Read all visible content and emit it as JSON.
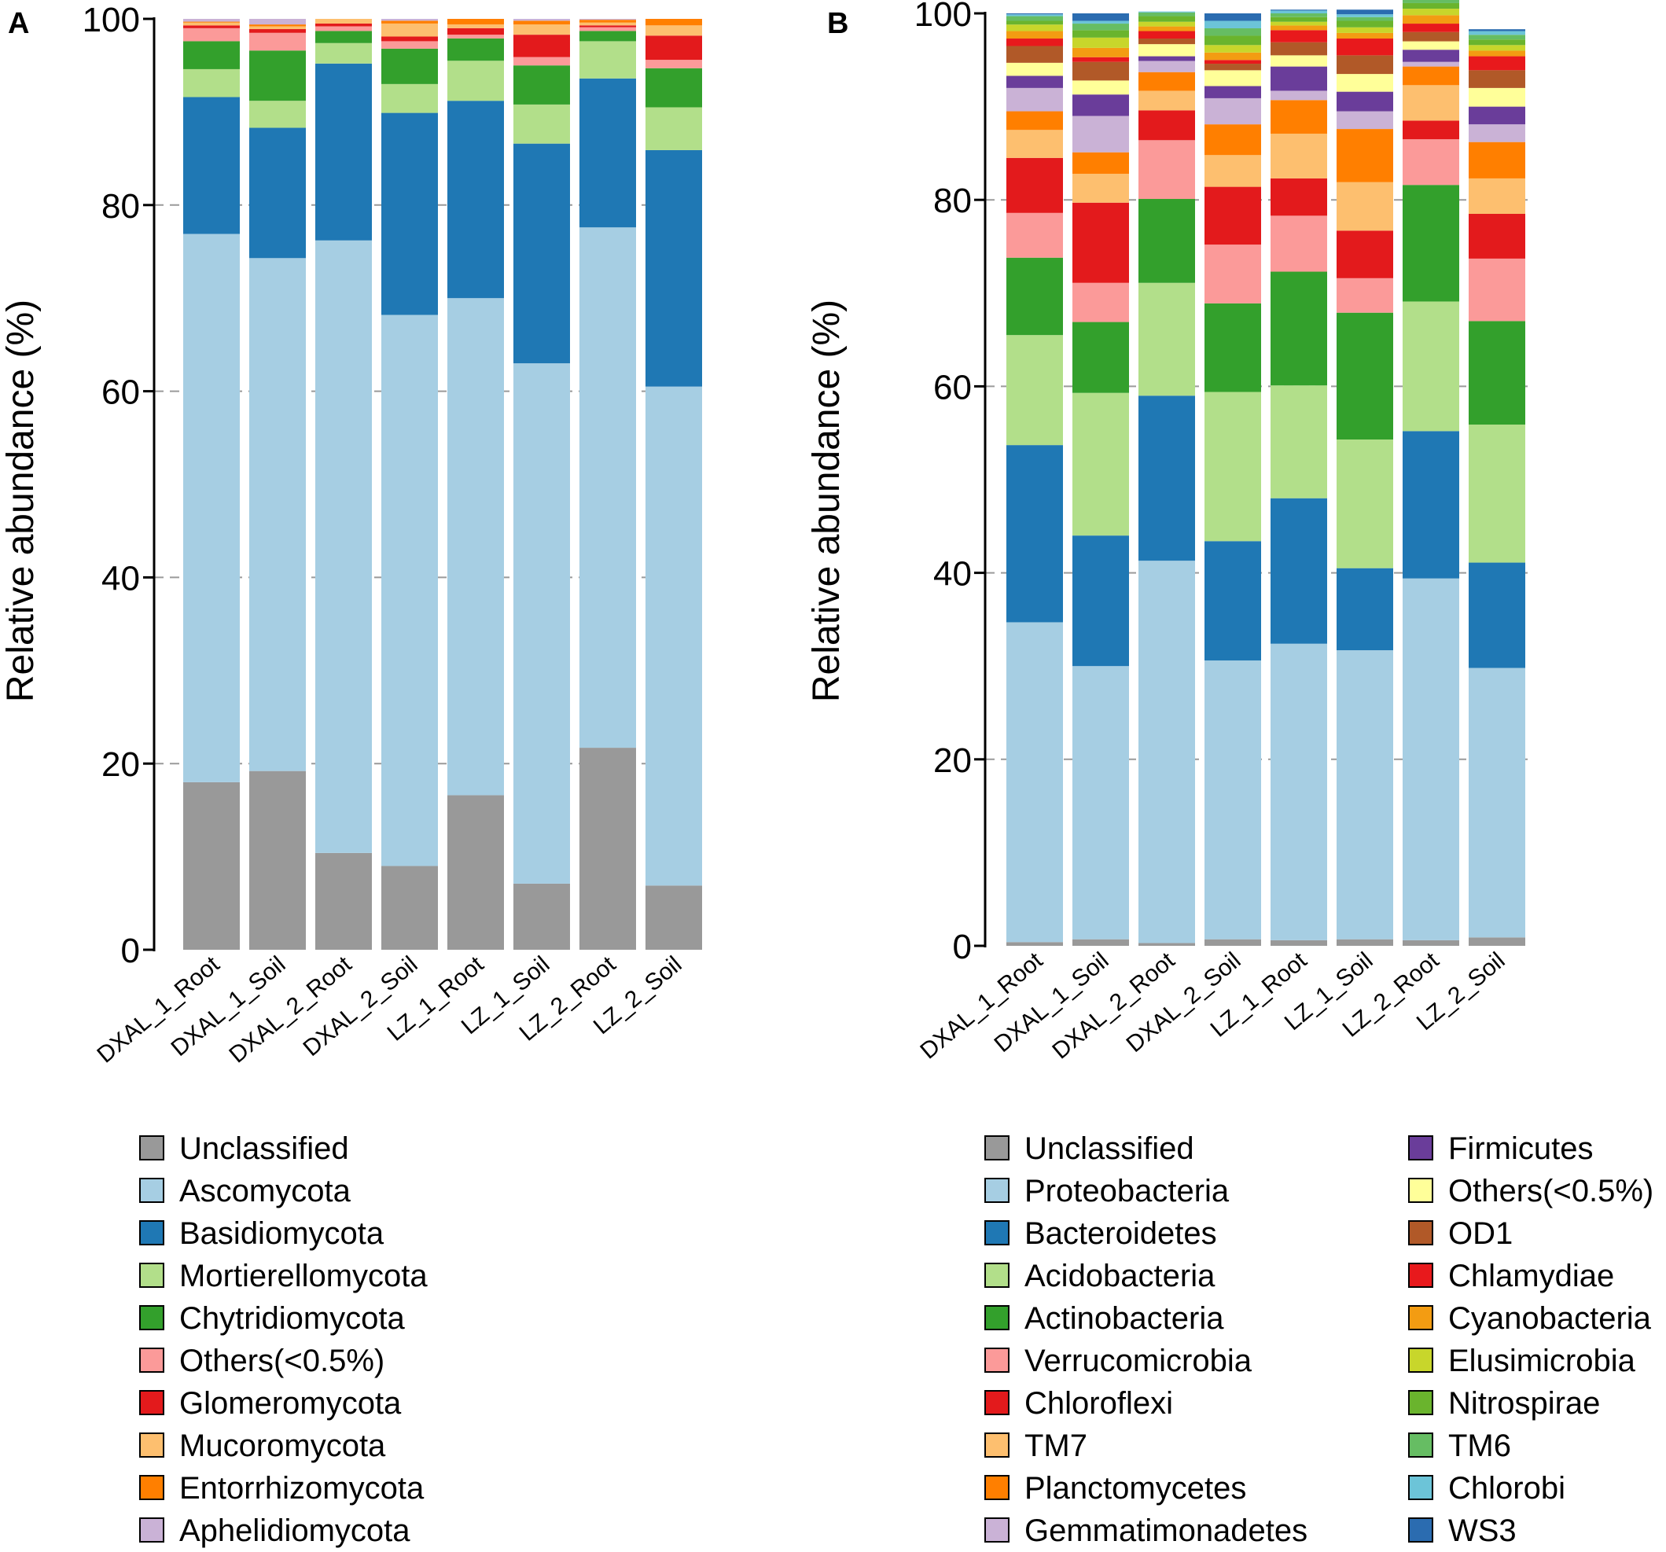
{
  "panels": [
    {
      "label": "A",
      "chart_data": {
        "type": "bar",
        "stacked": true,
        "title": "",
        "xlabel": "",
        "ylabel": "Relative abundance (%)",
        "ylim": [
          0,
          100
        ],
        "yticks": [
          0,
          20,
          40,
          60,
          80,
          100
        ],
        "grid": "horizontal dashed",
        "categories": [
          "DXAL_1_Root",
          "DXAL_1_Soil",
          "DXAL_2_Root",
          "DXAL_2_Soil",
          "LZ_1_Root",
          "LZ_1_Soil",
          "LZ_2_Root",
          "LZ_2_Soil"
        ],
        "series": [
          {
            "name": "Unclassified",
            "color": "#999999",
            "values": [
              18.0,
              19.2,
              10.4,
              9.0,
              16.6,
              7.1,
              21.7,
              6.9
            ]
          },
          {
            "name": "Ascomycota",
            "color": "#a6cee3",
            "values": [
              58.9,
              55.1,
              65.8,
              59.2,
              53.4,
              55.9,
              55.9,
              53.6
            ]
          },
          {
            "name": "Basidiomycota",
            "color": "#1f78b4",
            "values": [
              14.7,
              14.0,
              19.0,
              21.7,
              21.2,
              23.6,
              16.0,
              25.4
            ]
          },
          {
            "name": "Mortierellomycota",
            "color": "#b2df8a",
            "values": [
              3.0,
              2.9,
              2.2,
              3.1,
              4.3,
              4.2,
              4.0,
              4.6
            ]
          },
          {
            "name": "Chytridiomycota",
            "color": "#33a02c",
            "values": [
              3.0,
              5.4,
              1.3,
              3.8,
              2.4,
              4.2,
              1.1,
              4.2
            ]
          },
          {
            "name": "Others(<0.5%)",
            "color": "#fb9a99",
            "values": [
              1.4,
              1.9,
              0.5,
              0.8,
              0.4,
              0.9,
              0.4,
              0.9
            ]
          },
          {
            "name": "Glomeromycota",
            "color": "#e31a1c",
            "values": [
              0.3,
              0.4,
              0.3,
              0.5,
              0.7,
              2.4,
              0.2,
              2.6
            ]
          },
          {
            "name": "Mucoromycota",
            "color": "#fdbf6f",
            "values": [
              0.3,
              0.3,
              0.5,
              1.4,
              0.4,
              1.1,
              0.3,
              1.1
            ]
          },
          {
            "name": "Entorrhizomycota",
            "color": "#ff7f00",
            "values": [
              0.1,
              0.2,
              0.0,
              0.3,
              0.6,
              0.4,
              0.3,
              0.7
            ]
          },
          {
            "name": "Aphelidiomycota",
            "color": "#cab2d6",
            "values": [
              0.3,
              0.6,
              0.0,
              0.2,
              0.0,
              0.2,
              0.1,
              0.0
            ]
          }
        ]
      }
    },
    {
      "label": "B",
      "chart_data": {
        "type": "bar",
        "stacked": true,
        "title": "",
        "xlabel": "",
        "ylabel": "Relative abundance (%)",
        "ylim": [
          0,
          100
        ],
        "yticks": [
          0,
          20,
          40,
          60,
          80,
          100
        ],
        "grid": "horizontal dashed",
        "categories": [
          "DXAL_1_Root",
          "DXAL_1_Soil",
          "DXAL_2_Root",
          "DXAL_2_Soil",
          "LZ_1_Root",
          "LZ_1_Soil",
          "LZ_2_Root",
          "LZ_2_Soil"
        ],
        "series": [
          {
            "name": "Unclassified",
            "color": "#999999",
            "values": [
              0.4,
              0.7,
              0.3,
              0.7,
              0.6,
              0.7,
              0.6,
              0.9
            ]
          },
          {
            "name": "Proteobacteria",
            "color": "#a6cee3",
            "values": [
              34.3,
              29.3,
              41.0,
              29.9,
              31.8,
              31.0,
              38.8,
              28.9
            ]
          },
          {
            "name": "Bacteroidetes",
            "color": "#1f78b4",
            "values": [
              19.0,
              14.0,
              17.7,
              12.8,
              15.6,
              8.8,
              15.8,
              11.3
            ]
          },
          {
            "name": "Acidobacteria",
            "color": "#b2df8a",
            "values": [
              11.8,
              15.3,
              12.1,
              16.0,
              12.1,
              13.8,
              13.9,
              14.8
            ]
          },
          {
            "name": "Actinobacteria",
            "color": "#33a02c",
            "values": [
              8.3,
              7.6,
              9.0,
              9.5,
              12.2,
              13.6,
              12.5,
              11.1
            ]
          },
          {
            "name": "Verrucomicrobia",
            "color": "#fb9a99",
            "values": [
              4.8,
              4.2,
              6.3,
              6.3,
              6.0,
              3.7,
              4.9,
              6.7
            ]
          },
          {
            "name": "Chloroflexi",
            "color": "#e31a1c",
            "values": [
              5.9,
              8.6,
              3.2,
              6.2,
              4.0,
              5.1,
              2.0,
              4.8
            ]
          },
          {
            "name": "TM7",
            "color": "#fdbf6f",
            "values": [
              3.0,
              3.1,
              2.1,
              3.4,
              4.8,
              5.2,
              3.8,
              3.8
            ]
          },
          {
            "name": "Planctomycetes",
            "color": "#ff7f00",
            "values": [
              2.0,
              2.3,
              2.0,
              3.3,
              3.6,
              5.7,
              2.0,
              3.9
            ]
          },
          {
            "name": "Gemmatimonadetes",
            "color": "#cab2d6",
            "values": [
              2.5,
              3.9,
              1.2,
              2.8,
              1.0,
              1.9,
              0.5,
              1.9
            ]
          },
          {
            "name": "Firmicutes",
            "color": "#6a3d9a",
            "values": [
              1.3,
              2.3,
              0.5,
              1.3,
              2.6,
              2.1,
              1.3,
              1.9
            ]
          },
          {
            "name": "Others(<0.5%)",
            "color": "#ffff99",
            "values": [
              1.4,
              1.5,
              1.3,
              1.7,
              1.2,
              1.9,
              0.9,
              2.0
            ]
          },
          {
            "name": "OD1",
            "color": "#b15928",
            "values": [
              1.8,
              2.0,
              0.6,
              0.7,
              1.4,
              2.0,
              1.0,
              1.9
            ]
          },
          {
            "name": "Chlamydiae",
            "color": "#e8191c",
            "values": [
              0.8,
              0.5,
              0.8,
              0.4,
              1.3,
              1.8,
              0.9,
              1.5
            ]
          },
          {
            "name": "Cyanobacteria",
            "color": "#f39c12",
            "values": [
              0.8,
              1.0,
              0.5,
              0.8,
              0.5,
              0.6,
              0.9,
              0.6
            ]
          },
          {
            "name": "Elusimicrobia",
            "color": "#c8d62b",
            "values": [
              0.7,
              1.1,
              0.5,
              0.8,
              0.4,
              0.6,
              0.7,
              0.6
            ]
          },
          {
            "name": "Nitrospirae",
            "color": "#6ab42d",
            "values": [
              0.4,
              0.8,
              0.6,
              1.0,
              0.5,
              0.7,
              0.6,
              0.6
            ]
          },
          {
            "name": "TM6",
            "color": "#66bd63",
            "values": [
              0.5,
              0.7,
              0.4,
              0.8,
              0.4,
              0.4,
              0.6,
              0.5
            ]
          },
          {
            "name": "Chlorobi",
            "color": "#6cc4d8",
            "values": [
              0.2,
              0.3,
              0.1,
              0.8,
              0.3,
              0.3,
              0.2,
              0.4
            ]
          },
          {
            "name": "WS3",
            "color": "#2b6cb0",
            "values": [
              0.1,
              0.8,
              0.0,
              0.8,
              0.1,
              0.5,
              0.3,
              0.2
            ]
          }
        ]
      }
    }
  ]
}
